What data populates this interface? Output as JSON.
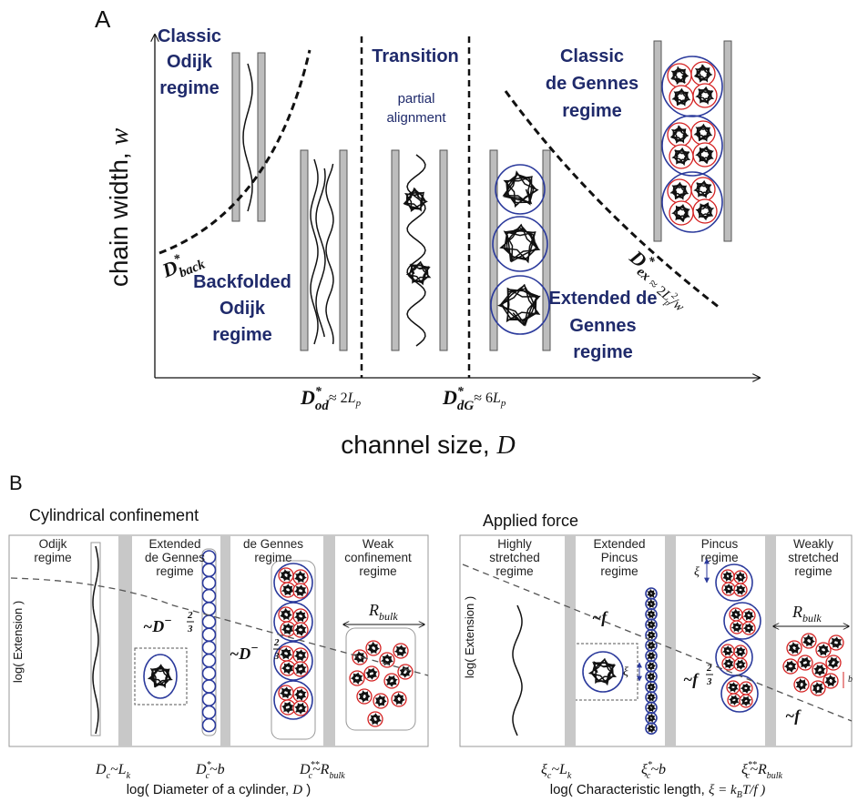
{
  "panel_a": {
    "label": "A",
    "y_axis_label": {
      "text": "chain width, ",
      "var": "w"
    },
    "x_axis_label": {
      "text": "channel size, ",
      "var": "D"
    },
    "classic_odijk": [
      "Classic",
      "Odijk",
      "regime"
    ],
    "transition": "Transition",
    "partial_alignment": [
      "partial",
      "alignment"
    ],
    "classic_de_gennes": [
      "Classic",
      "de Gennes",
      "regime"
    ],
    "backfolded_odijk": [
      "Backfolded",
      "Odijk",
      "regime"
    ],
    "extended_de_gennes": [
      "Extended de",
      "Gennes",
      "regime"
    ],
    "d_back": {
      "symbol": "D",
      "sup": "*",
      "sub": "back"
    },
    "d_od": {
      "symbol": "D",
      "sup": "*",
      "sub": "od",
      "approx": "≈ 2",
      "length": "L",
      "length_sub": "p"
    },
    "d_dg": {
      "symbol": "D",
      "sup": "*",
      "sub": "dG",
      "approx": "≈ 6",
      "length": "L",
      "length_sub": "p"
    },
    "d_ex": {
      "symbol": "D",
      "sup": "*",
      "sub": "ex",
      "approx": "≈ 2",
      "length": "L",
      "length_sup": "2",
      "length_sub": "p",
      "tail": "/w"
    }
  },
  "panel_b": {
    "label": "B",
    "cylindrical": {
      "title": "Cylindrical confinement",
      "y_axis_label": "log( Extension )",
      "regimes": [
        [
          "Odijk",
          "regime"
        ],
        [
          "Extended",
          "de Gennes",
          "regime"
        ],
        [
          "de Gennes",
          "regime"
        ],
        [
          "Weak",
          "confinement",
          "regime"
        ]
      ],
      "scaling": [
        {
          "prefix": "~",
          "symbol": "D",
          "sign": "−",
          "num": "2",
          "den": "3"
        },
        {
          "prefix": "~",
          "symbol": "D",
          "sign": "−",
          "num": "2",
          "den": "3"
        }
      ],
      "r_bulk": {
        "symbol": "R",
        "sub": "bulk"
      },
      "ticks": [
        {
          "symbol": "D",
          "sub": "c",
          "rel": "~L",
          "rhs_sub": "k"
        },
        {
          "symbol": "D",
          "sup": "*",
          "sub": "c",
          "rel": "~b"
        },
        {
          "symbol": "D",
          "sup": "**",
          "sub": "c",
          "rel": "~R",
          "rhs_sub": "bulk"
        }
      ],
      "x_axis_label": {
        "text": "log( Diameter of a cylinder, ",
        "var": "D",
        "end": " )"
      }
    },
    "force": {
      "title": "Applied force",
      "y_axis_label": "log( Extension )",
      "regimes": [
        [
          "Highly",
          "stretched",
          "regime"
        ],
        [
          "Extended",
          "Pincus",
          "regime"
        ],
        [
          "Pincus",
          "regime"
        ],
        [
          "Weakly",
          "stretched",
          "regime"
        ]
      ],
      "xi_labels": [
        "ξ",
        "ξ"
      ],
      "b": "b",
      "f_scalings": [
        {
          "text": "~f"
        },
        {
          "text": "~f",
          "num": "2",
          "den": "3"
        },
        {
          "text": "~f"
        }
      ],
      "r_bulk": {
        "symbol": "R",
        "sub": "bulk"
      },
      "ticks": [
        {
          "symbol": "ξ",
          "sub": "c",
          "rel": "~L",
          "rhs_sub": "k"
        },
        {
          "symbol": "ξ",
          "sup": "*",
          "sub": "c",
          "rel": "~b"
        },
        {
          "symbol": "ξ",
          "sup": "**",
          "sub": "c",
          "rel": "~R",
          "rhs_sub": "bulk"
        }
      ],
      "x_axis_label": {
        "text": "log( Characteristic length, ",
        "var": "ξ",
        "eq": " = k",
        "sub": "B",
        "rest": "T/f )"
      }
    }
  }
}
